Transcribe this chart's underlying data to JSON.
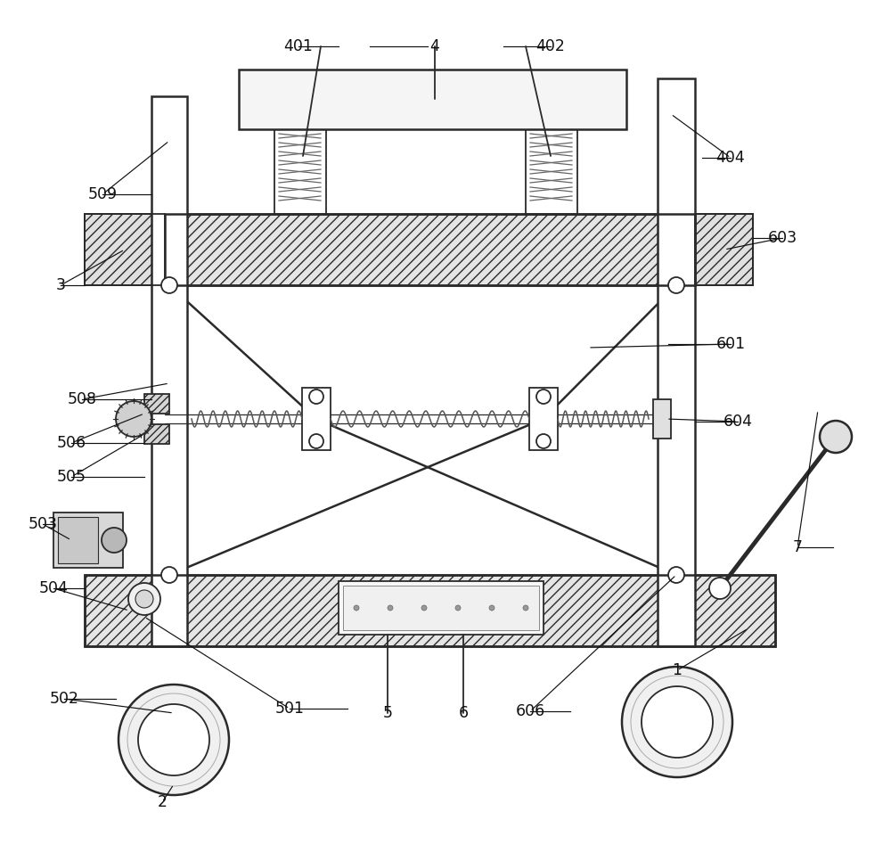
{
  "fig_w": 10.0,
  "fig_h": 9.57,
  "dpi": 100,
  "lc": "#2a2a2a",
  "lw": 1.3,
  "lw2": 1.8,
  "hatch_fc": "#e8e8e8",
  "white": "white"
}
